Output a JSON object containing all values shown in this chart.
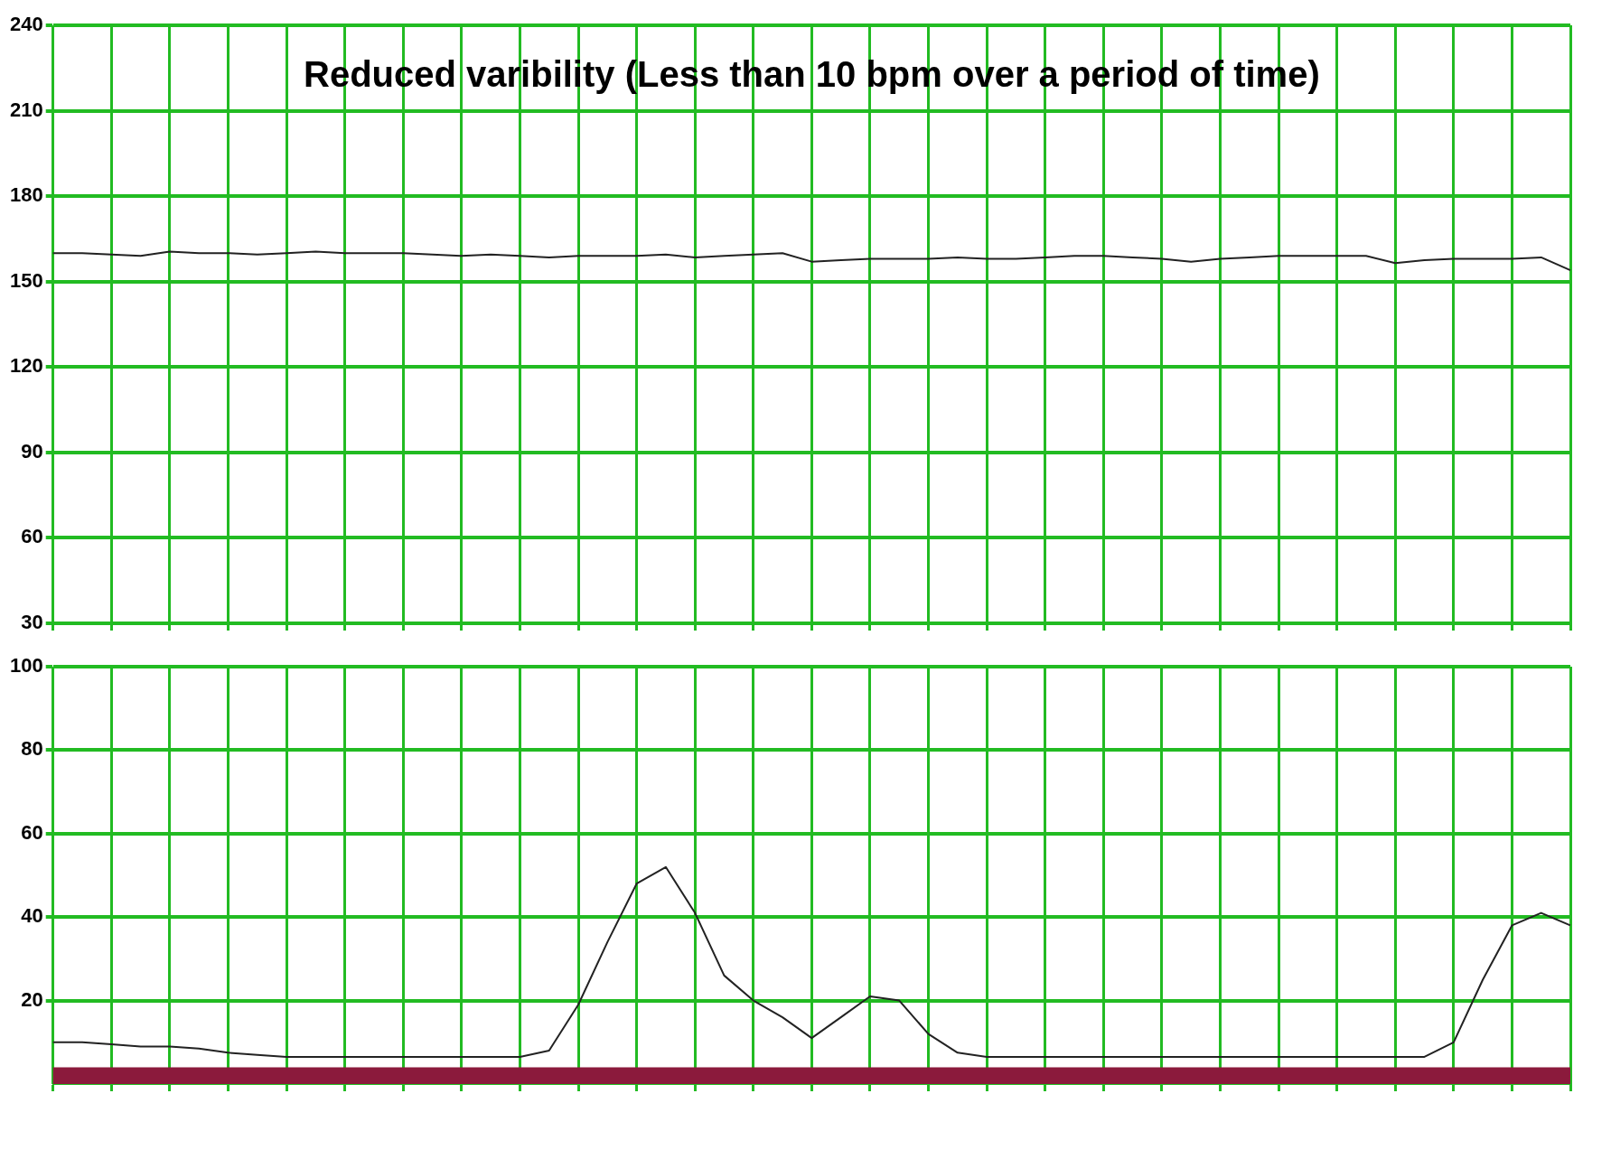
{
  "chart_data": [
    {
      "type": "line",
      "title": "Reduced varibility (Less than 10 bpm over a period of time)",
      "categories": [
        null,
        null,
        null,
        null,
        null,
        null,
        null,
        null,
        null,
        null,
        null,
        null,
        null,
        null,
        null,
        null,
        null,
        null,
        null,
        null,
        null,
        null,
        null,
        null,
        null,
        null,
        null,
        null,
        null,
        null,
        null,
        null,
        null,
        null,
        null,
        null,
        null,
        null,
        null,
        null,
        null,
        null,
        null,
        null,
        null,
        null,
        null,
        null,
        null,
        null,
        null,
        null,
        null
      ],
      "series": [
        {
          "color": "#222222",
          "values": [
            160,
            160,
            159.5,
            159,
            160.5,
            160,
            160,
            159.5,
            160,
            160.5,
            160,
            160,
            160,
            159.5,
            159,
            159.5,
            159,
            158.5,
            159,
            159,
            159,
            159.5,
            158.5,
            159,
            159.5,
            160,
            157,
            157.5,
            158,
            158,
            158,
            158.5,
            158,
            158,
            158.5,
            159,
            159,
            158.5,
            158,
            157,
            158,
            158.5,
            159,
            159,
            159,
            159,
            156.5,
            157.5,
            158,
            158,
            158,
            158.5,
            154
          ]
        }
      ],
      "ylim": [
        30,
        240
      ],
      "yticks": [
        30,
        60,
        90,
        120,
        150,
        180,
        210,
        240
      ],
      "grid": true,
      "marker": "none",
      "line_style": "solid"
    },
    {
      "type": "line",
      "categories": [
        null,
        null,
        null,
        null,
        null,
        null,
        null,
        null,
        null,
        null,
        null,
        null,
        null,
        null,
        null,
        null,
        null,
        null,
        null,
        null,
        null,
        null,
        null,
        null,
        null,
        null,
        null,
        null,
        null,
        null,
        null,
        null,
        null,
        null,
        null,
        null,
        null,
        null,
        null,
        null,
        null,
        null,
        null,
        null,
        null,
        null,
        null,
        null,
        null,
        null,
        null,
        null,
        null
      ],
      "series": [
        {
          "color": "#222222",
          "values": [
            10,
            10,
            9.5,
            9,
            9,
            8.5,
            7.5,
            7,
            6.5,
            6.5,
            6.5,
            6.5,
            6.5,
            6.5,
            6.5,
            6.5,
            6.5,
            8,
            19,
            34,
            48,
            52,
            41,
            26,
            20,
            16,
            11,
            16,
            21,
            20,
            12,
            7.5,
            6.5,
            6.5,
            6.5,
            6.5,
            6.5,
            6.5,
            6.5,
            6.5,
            6.5,
            6.5,
            6.5,
            6.5,
            6.5,
            6.5,
            6.5,
            6.5,
            10,
            25,
            38,
            41,
            38
          ]
        }
      ],
      "ylim": [
        0,
        100
      ],
      "yticks": [
        20,
        40,
        60,
        80,
        100
      ],
      "grid": true,
      "marker": "none",
      "line_style": "solid",
      "bands": [
        {
          "axis": "y",
          "from": 0,
          "to": 4,
          "color": "#8b1a3c"
        }
      ]
    }
  ]
}
